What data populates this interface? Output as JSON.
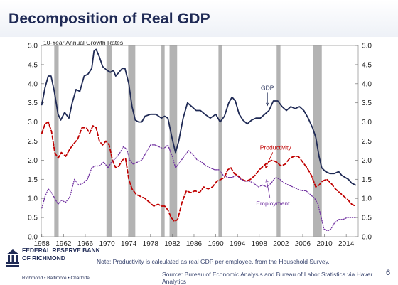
{
  "header": {
    "title": "Decomposition of Real GDP"
  },
  "footer": {
    "note": "Note: Productivity is calculated as real GDP per employee, from the Household Survey.",
    "source": "Source: Bureau of Economic Analysis and Bureau of Labor Statistics via Haver Analytics",
    "page_number": "6",
    "logo": {
      "name_line1": "FEDERAL RESERVE BANK",
      "name_line2": "OF RICHMOND",
      "cities": "Richmond • Baltimore • Charlotte"
    }
  },
  "colors": {
    "title": "#1f2a55",
    "gdp": "#1f2a55",
    "productivity": "#c00000",
    "employment": "#7030a0",
    "recession": "#b3b3b3",
    "axis_text": "#222222",
    "annotation": "#1f2a55"
  },
  "icons": [
    "federal-reserve-logo-icon"
  ],
  "chart_data": {
    "type": "line",
    "subtitle": "10-Year Annual Growth Rates",
    "xlabel": "",
    "ylabel": "",
    "xlim": [
      1957.9,
      2016.2
    ],
    "ylim": [
      0.0,
      5.0
    ],
    "y_ticks": [
      "0.0",
      "0.5",
      "1.0",
      "1.5",
      "2.0",
      "2.5",
      "3.0",
      "3.5",
      "4.0",
      "4.5",
      "5.0"
    ],
    "x_ticks": [
      "1958",
      "1962",
      "1966",
      "1970",
      "1974",
      "1978",
      "1982",
      "1986",
      "1990",
      "1994",
      "1998",
      "2002",
      "2006",
      "2010",
      "2014"
    ],
    "grid": false,
    "recessions": [
      [
        1960.3,
        1961.1
      ],
      [
        1969.9,
        1970.9
      ],
      [
        1973.9,
        1975.2
      ],
      [
        1980.0,
        1980.6
      ],
      [
        1981.5,
        1982.9
      ],
      [
        1990.5,
        1991.2
      ],
      [
        2001.2,
        2001.9
      ],
      [
        2007.9,
        2009.5
      ]
    ],
    "annotations": [
      {
        "text": "GDP",
        "x": 1999.5,
        "y": 3.84,
        "series": "GDP"
      },
      {
        "text": "Productivity",
        "x": 2001.0,
        "y": 2.28,
        "series": "Productivity"
      },
      {
        "text": "Employment",
        "x": 2000.5,
        "y": 0.82,
        "series": "Employment"
      }
    ],
    "series": [
      {
        "name": "GDP",
        "style": "solid",
        "points": [
          [
            1958.0,
            3.45
          ],
          [
            1958.6,
            3.9
          ],
          [
            1959.2,
            4.2
          ],
          [
            1959.7,
            4.2
          ],
          [
            1960.3,
            3.8
          ],
          [
            1961.0,
            3.2
          ],
          [
            1961.5,
            3.05
          ],
          [
            1962.2,
            3.25
          ],
          [
            1963.0,
            3.1
          ],
          [
            1963.6,
            3.5
          ],
          [
            1964.3,
            3.85
          ],
          [
            1965.0,
            3.8
          ],
          [
            1965.8,
            4.2
          ],
          [
            1966.5,
            4.25
          ],
          [
            1967.2,
            4.4
          ],
          [
            1967.6,
            4.85
          ],
          [
            1968.0,
            4.9
          ],
          [
            1968.6,
            4.7
          ],
          [
            1969.2,
            4.45
          ],
          [
            1970.0,
            4.35
          ],
          [
            1970.6,
            4.3
          ],
          [
            1971.2,
            4.35
          ],
          [
            1971.6,
            4.2
          ],
          [
            1972.2,
            4.3
          ],
          [
            1972.8,
            4.4
          ],
          [
            1973.3,
            4.4
          ],
          [
            1974.0,
            4.0
          ],
          [
            1974.6,
            3.4
          ],
          [
            1975.2,
            3.05
          ],
          [
            1975.8,
            3.0
          ],
          [
            1976.4,
            3.0
          ],
          [
            1977.0,
            3.15
          ],
          [
            1978.0,
            3.2
          ],
          [
            1979.0,
            3.2
          ],
          [
            1980.0,
            3.1
          ],
          [
            1980.6,
            3.15
          ],
          [
            1981.2,
            3.1
          ],
          [
            1982.0,
            2.55
          ],
          [
            1982.6,
            2.2
          ],
          [
            1983.2,
            2.5
          ],
          [
            1984.0,
            3.1
          ],
          [
            1984.8,
            3.5
          ],
          [
            1985.6,
            3.4
          ],
          [
            1986.4,
            3.3
          ],
          [
            1987.2,
            3.3
          ],
          [
            1988.0,
            3.2
          ],
          [
            1989.0,
            3.1
          ],
          [
            1990.0,
            3.2
          ],
          [
            1990.8,
            3.0
          ],
          [
            1991.6,
            3.15
          ],
          [
            1992.4,
            3.5
          ],
          [
            1993.0,
            3.65
          ],
          [
            1993.6,
            3.55
          ],
          [
            1994.3,
            3.2
          ],
          [
            1995.0,
            3.05
          ],
          [
            1995.8,
            2.95
          ],
          [
            1996.6,
            3.05
          ],
          [
            1997.4,
            3.1
          ],
          [
            1998.2,
            3.1
          ],
          [
            1999.0,
            3.2
          ],
          [
            1999.8,
            3.3
          ],
          [
            2000.6,
            3.55
          ],
          [
            2001.4,
            3.55
          ],
          [
            2002.2,
            3.4
          ],
          [
            2003.0,
            3.3
          ],
          [
            2003.8,
            3.4
          ],
          [
            2004.6,
            3.35
          ],
          [
            2005.4,
            3.4
          ],
          [
            2006.2,
            3.3
          ],
          [
            2007.0,
            3.1
          ],
          [
            2007.8,
            2.85
          ],
          [
            2008.4,
            2.6
          ],
          [
            2009.0,
            2.1
          ],
          [
            2009.5,
            1.8
          ],
          [
            2010.2,
            1.7
          ],
          [
            2011.0,
            1.65
          ],
          [
            2011.8,
            1.65
          ],
          [
            2012.6,
            1.7
          ],
          [
            2013.2,
            1.6
          ],
          [
            2013.8,
            1.55
          ],
          [
            2014.4,
            1.5
          ],
          [
            2015.0,
            1.4
          ],
          [
            2015.7,
            1.35
          ]
        ]
      },
      {
        "name": "Productivity",
        "style": "dashed",
        "points": [
          [
            1958.0,
            2.7
          ],
          [
            1958.6,
            2.95
          ],
          [
            1959.2,
            3.0
          ],
          [
            1959.8,
            2.75
          ],
          [
            1960.4,
            2.2
          ],
          [
            1961.0,
            2.05
          ],
          [
            1961.6,
            2.2
          ],
          [
            1962.4,
            2.1
          ],
          [
            1963.2,
            2.3
          ],
          [
            1964.0,
            2.45
          ],
          [
            1964.6,
            2.55
          ],
          [
            1965.4,
            2.85
          ],
          [
            1966.2,
            2.85
          ],
          [
            1966.8,
            2.7
          ],
          [
            1967.4,
            2.9
          ],
          [
            1968.0,
            2.85
          ],
          [
            1968.6,
            2.5
          ],
          [
            1969.2,
            2.4
          ],
          [
            1969.8,
            2.5
          ],
          [
            1970.4,
            2.4
          ],
          [
            1971.0,
            2.0
          ],
          [
            1971.6,
            1.8
          ],
          [
            1972.2,
            1.85
          ],
          [
            1972.8,
            2.0
          ],
          [
            1973.4,
            2.05
          ],
          [
            1974.0,
            1.5
          ],
          [
            1974.6,
            1.25
          ],
          [
            1975.4,
            1.1
          ],
          [
            1976.2,
            1.05
          ],
          [
            1977.0,
            1.0
          ],
          [
            1977.8,
            0.9
          ],
          [
            1978.6,
            0.8
          ],
          [
            1979.4,
            0.85
          ],
          [
            1980.0,
            0.8
          ],
          [
            1980.6,
            0.8
          ],
          [
            1981.2,
            0.7
          ],
          [
            1981.8,
            0.5
          ],
          [
            1982.4,
            0.4
          ],
          [
            1983.0,
            0.45
          ],
          [
            1983.8,
            0.9
          ],
          [
            1984.6,
            1.2
          ],
          [
            1985.4,
            1.15
          ],
          [
            1986.2,
            1.2
          ],
          [
            1987.0,
            1.15
          ],
          [
            1987.8,
            1.3
          ],
          [
            1988.6,
            1.25
          ],
          [
            1989.4,
            1.3
          ],
          [
            1990.2,
            1.45
          ],
          [
            1991.0,
            1.5
          ],
          [
            1991.6,
            1.55
          ],
          [
            1992.2,
            1.75
          ],
          [
            1992.8,
            1.8
          ],
          [
            1993.4,
            1.65
          ],
          [
            1994.0,
            1.6
          ],
          [
            1994.8,
            1.5
          ],
          [
            1995.6,
            1.45
          ],
          [
            1996.4,
            1.5
          ],
          [
            1997.2,
            1.6
          ],
          [
            1998.0,
            1.75
          ],
          [
            1998.8,
            1.85
          ],
          [
            1999.6,
            1.95
          ],
          [
            2000.4,
            2.0
          ],
          [
            2001.2,
            1.95
          ],
          [
            2002.0,
            1.85
          ],
          [
            2002.8,
            1.9
          ],
          [
            2003.6,
            2.05
          ],
          [
            2004.4,
            2.1
          ],
          [
            2005.2,
            2.1
          ],
          [
            2006.0,
            1.95
          ],
          [
            2006.8,
            1.8
          ],
          [
            2007.6,
            1.6
          ],
          [
            2008.4,
            1.3
          ],
          [
            2009.0,
            1.35
          ],
          [
            2009.6,
            1.45
          ],
          [
            2010.4,
            1.5
          ],
          [
            2011.2,
            1.4
          ],
          [
            2012.0,
            1.25
          ],
          [
            2012.8,
            1.15
          ],
          [
            2013.6,
            1.05
          ],
          [
            2014.4,
            0.95
          ],
          [
            2015.0,
            0.85
          ],
          [
            2015.7,
            0.8
          ]
        ]
      },
      {
        "name": "Employment",
        "style": "dotted",
        "points": [
          [
            1958.0,
            0.75
          ],
          [
            1958.6,
            1.05
          ],
          [
            1959.2,
            1.25
          ],
          [
            1959.8,
            1.15
          ],
          [
            1960.4,
            1.0
          ],
          [
            1961.0,
            0.85
          ],
          [
            1961.6,
            0.95
          ],
          [
            1962.4,
            0.9
          ],
          [
            1963.2,
            1.05
          ],
          [
            1964.0,
            1.5
          ],
          [
            1964.8,
            1.35
          ],
          [
            1965.6,
            1.4
          ],
          [
            1966.4,
            1.5
          ],
          [
            1967.2,
            1.8
          ],
          [
            1967.8,
            1.85
          ],
          [
            1968.6,
            1.85
          ],
          [
            1969.4,
            1.95
          ],
          [
            1970.2,
            1.8
          ],
          [
            1970.8,
            1.95
          ],
          [
            1971.6,
            2.05
          ],
          [
            1972.4,
            2.2
          ],
          [
            1973.0,
            2.35
          ],
          [
            1973.6,
            2.3
          ],
          [
            1974.2,
            2.0
          ],
          [
            1974.8,
            1.9
          ],
          [
            1975.6,
            1.95
          ],
          [
            1976.4,
            2.0
          ],
          [
            1977.2,
            2.2
          ],
          [
            1978.0,
            2.4
          ],
          [
            1978.8,
            2.4
          ],
          [
            1979.6,
            2.35
          ],
          [
            1980.4,
            2.3
          ],
          [
            1981.2,
            2.4
          ],
          [
            1982.0,
            2.1
          ],
          [
            1982.6,
            1.8
          ],
          [
            1983.4,
            1.95
          ],
          [
            1984.2,
            2.1
          ],
          [
            1985.0,
            2.25
          ],
          [
            1985.8,
            2.15
          ],
          [
            1986.6,
            2.0
          ],
          [
            1987.4,
            1.95
          ],
          [
            1988.2,
            1.85
          ],
          [
            1989.0,
            1.8
          ],
          [
            1989.8,
            1.75
          ],
          [
            1990.6,
            1.75
          ],
          [
            1991.4,
            1.6
          ],
          [
            1992.2,
            1.55
          ],
          [
            1993.0,
            1.55
          ],
          [
            1993.8,
            1.6
          ],
          [
            1994.6,
            1.5
          ],
          [
            1995.4,
            1.45
          ],
          [
            1996.2,
            1.45
          ],
          [
            1997.0,
            1.4
          ],
          [
            1997.8,
            1.3
          ],
          [
            1998.6,
            1.35
          ],
          [
            1999.4,
            1.3
          ],
          [
            2000.2,
            1.4
          ],
          [
            2001.0,
            1.55
          ],
          [
            2001.8,
            1.5
          ],
          [
            2002.6,
            1.4
          ],
          [
            2003.4,
            1.35
          ],
          [
            2004.2,
            1.3
          ],
          [
            2005.0,
            1.25
          ],
          [
            2005.8,
            1.2
          ],
          [
            2006.6,
            1.2
          ],
          [
            2007.4,
            1.1
          ],
          [
            2008.2,
            1.0
          ],
          [
            2008.8,
            0.85
          ],
          [
            2009.4,
            0.5
          ],
          [
            2009.9,
            0.2
          ],
          [
            2010.6,
            0.15
          ],
          [
            2011.2,
            0.2
          ],
          [
            2011.8,
            0.35
          ],
          [
            2012.6,
            0.45
          ],
          [
            2013.4,
            0.45
          ],
          [
            2014.2,
            0.5
          ],
          [
            2015.0,
            0.5
          ],
          [
            2015.7,
            0.5
          ]
        ]
      }
    ]
  }
}
